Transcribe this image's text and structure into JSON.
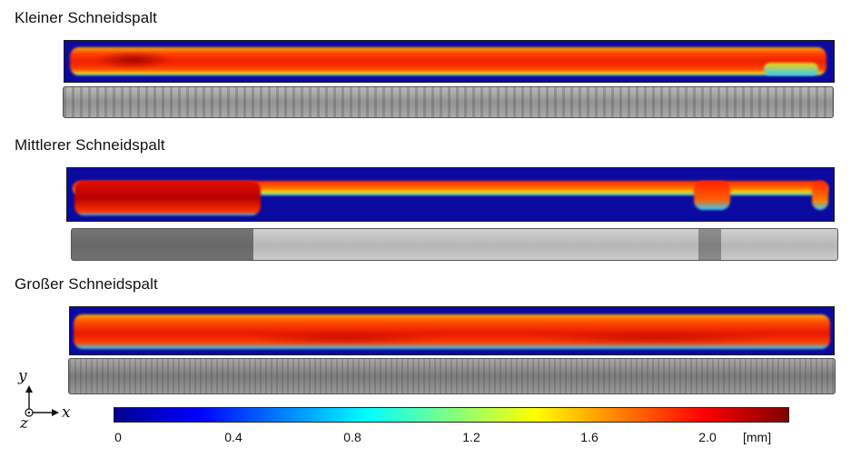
{
  "sections": [
    {
      "title": "Kleiner Schneidspalt"
    },
    {
      "title": "Mittlerer Schneidspalt"
    },
    {
      "title": "Großer Schneidspalt"
    }
  ],
  "axes": {
    "y": "y",
    "z": "z",
    "x": "x"
  },
  "colorbar": {
    "ticks": [
      "0",
      "0.4",
      "0.8",
      "1.2",
      "1.6",
      "2.0"
    ],
    "unit": "[mm]",
    "colors": [
      "#00008f",
      "#0000ff",
      "#0080ff",
      "#00ffff",
      "#80ff80",
      "#ffff00",
      "#ff8000",
      "#ff0000",
      "#800000"
    ]
  }
}
